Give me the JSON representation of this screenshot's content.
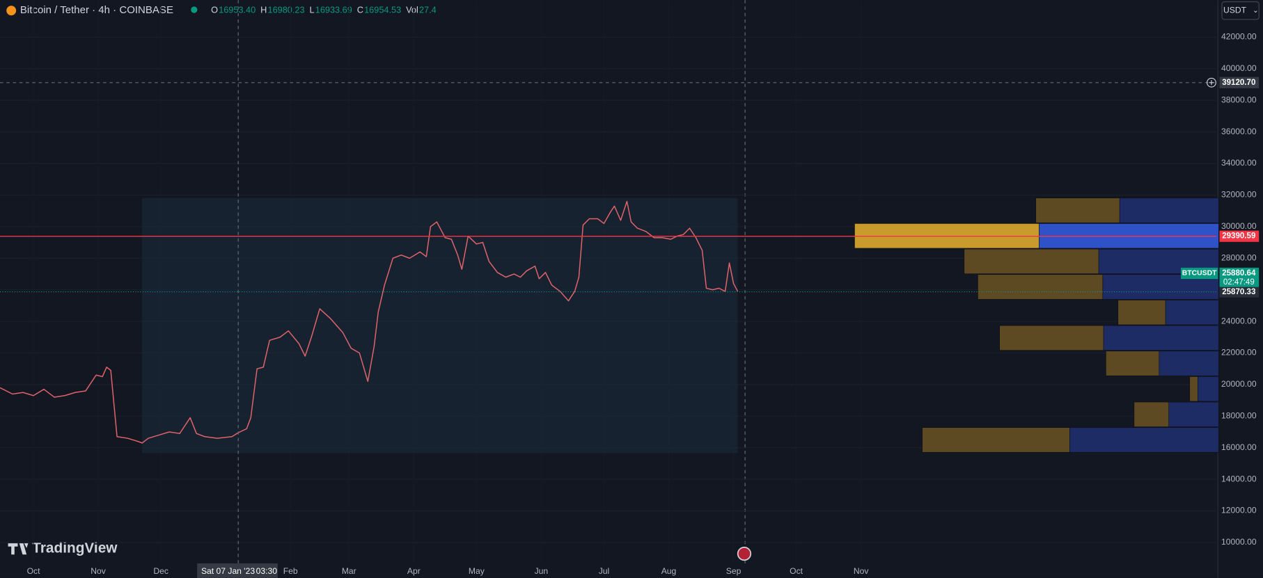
{
  "header": {
    "symbol": "Bitcoin / Tether · 4h · COINBASE",
    "ohlc": [
      {
        "label": "O",
        "value": "16953.40"
      },
      {
        "label": "H",
        "value": "16980.23"
      },
      {
        "label": "L",
        "value": "16933.69"
      },
      {
        "label": "C",
        "value": "16954.53"
      },
      {
        "label": "Vol",
        "value": "27.4"
      }
    ],
    "currency": "USDT",
    "brand": "TradingView"
  },
  "chart_data": {
    "type": "line",
    "x": [
      -16,
      -10,
      -5,
      0,
      5,
      10,
      15,
      20,
      25,
      30,
      33,
      35,
      37,
      40,
      45,
      50,
      52,
      55,
      60,
      65,
      70,
      75,
      78,
      82,
      88,
      95,
      98,
      102,
      104,
      107,
      110,
      113,
      118,
      122,
      127,
      130,
      133,
      137,
      142,
      148,
      152,
      156,
      160,
      163,
      165,
      168,
      172,
      176,
      180,
      185,
      188,
      190,
      193,
      197,
      200,
      203,
      205,
      208,
      212,
      215,
      218,
      222,
      226,
      230,
      233,
      236,
      240,
      242,
      245,
      248,
      252,
      256,
      259,
      261,
      263,
      266,
      270,
      273,
      276,
      278,
      281,
      284,
      286,
      289,
      293,
      297,
      301,
      305,
      308,
      311,
      314,
      317,
      320,
      322,
      325,
      328,
      331,
      333,
      335,
      337
    ],
    "series": [
      {
        "name": "BTCUSDT",
        "color": "#e0636a",
        "values": [
          19800,
          19400,
          19500,
          19300,
          19700,
          19200,
          19300,
          19500,
          19600,
          20600,
          20500,
          21100,
          20900,
          16700,
          16600,
          16400,
          16300,
          16600,
          16800,
          17000,
          16900,
          17900,
          16900,
          16700,
          16600,
          16700,
          16950,
          17200,
          17900,
          21000,
          21100,
          22800,
          23000,
          23400,
          22600,
          21800,
          23000,
          24800,
          24200,
          23300,
          22300,
          22000,
          20200,
          22400,
          24600,
          26300,
          28000,
          28200,
          28000,
          28400,
          28100,
          30000,
          30300,
          29300,
          29200,
          28200,
          27300,
          29400,
          28900,
          29000,
          27800,
          27100,
          26800,
          27000,
          26800,
          27200,
          27500,
          26700,
          27100,
          26300,
          25900,
          25300,
          25900,
          26800,
          30100,
          30500,
          30500,
          30200,
          30900,
          31300,
          30400,
          31600,
          30300,
          29900,
          29700,
          29300,
          29300,
          29200,
          29400,
          29500,
          29900,
          29300,
          28500,
          26100,
          26000,
          26100,
          25900,
          27700,
          26400,
          25900
        ]
      }
    ],
    "xlim": [
      -16,
      566
    ],
    "ylim": [
      8675,
      44344
    ],
    "xticks": [
      {
        "value": 0,
        "label": "Oct"
      },
      {
        "value": 31,
        "label": "Nov"
      },
      {
        "value": 61,
        "label": "Dec"
      },
      {
        "value": 123,
        "label": "Feb"
      },
      {
        "value": 151,
        "label": "Mar"
      },
      {
        "value": 182,
        "label": "Apr"
      },
      {
        "value": 212,
        "label": "May"
      },
      {
        "value": 243,
        "label": "Jun"
      },
      {
        "value": 273,
        "label": "Jul"
      },
      {
        "value": 304,
        "label": "Aug"
      },
      {
        "value": 335,
        "label": "Sep"
      },
      {
        "value": 365,
        "label": "Oct"
      },
      {
        "value": 396,
        "label": "Nov"
      }
    ],
    "yticks": [
      {
        "value": 10000,
        "label": "10000.00"
      },
      {
        "value": 12000,
        "label": "12000.00"
      },
      {
        "value": 14000,
        "label": "14000.00"
      },
      {
        "value": 16000,
        "label": "16000.00"
      },
      {
        "value": 18000,
        "label": "18000.00"
      },
      {
        "value": 20000,
        "label": "20000.00"
      },
      {
        "value": 22000,
        "label": "22000.00"
      },
      {
        "value": 24000,
        "label": "24000.00"
      },
      {
        "value": 26000,
        "label": "26000.00"
      },
      {
        "value": 28000,
        "label": "28000.00"
      },
      {
        "value": 30000,
        "label": "30000.00"
      },
      {
        "value": 32000,
        "label": "32000.00"
      },
      {
        "value": 34000,
        "label": "34000.00"
      },
      {
        "value": 36000,
        "label": "36000.00"
      },
      {
        "value": 38000,
        "label": "38000.00"
      },
      {
        "value": 40000,
        "label": "40000.00"
      },
      {
        "value": 42000,
        "label": "42000.00"
      }
    ],
    "grid": true,
    "crosshair": {
      "x": 98,
      "x_label": "Sat 07 Jan '23",
      "time_label": "03:30",
      "y": 39120.7,
      "y_label": "39120.70"
    },
    "hline": {
      "value": 29390.59,
      "color": "#f23645"
    },
    "last_price": {
      "value": 25870.33,
      "symbol": "BTCUSDT",
      "quote": 25880.64,
      "countdown": "02:47:49",
      "color": "#089981"
    },
    "range": {
      "start": 52,
      "end": 337
    },
    "volume_profile": {
      "edges": [
        15660,
        17275,
        18890,
        20505,
        22120,
        23735,
        25350,
        26965,
        28580,
        30195,
        31810
      ],
      "up": [
        183,
        43,
        10,
        66,
        129,
        59,
        155,
        167,
        229,
        104
      ],
      "down": [
        185,
        62,
        26,
        74,
        143,
        66,
        144,
        149,
        223,
        123
      ],
      "up_color": "#5d4a22",
      "down_color": "#1e2c66",
      "poc_up_color": "#c99b2c",
      "poc_down_color": "#2f52c8"
    }
  }
}
